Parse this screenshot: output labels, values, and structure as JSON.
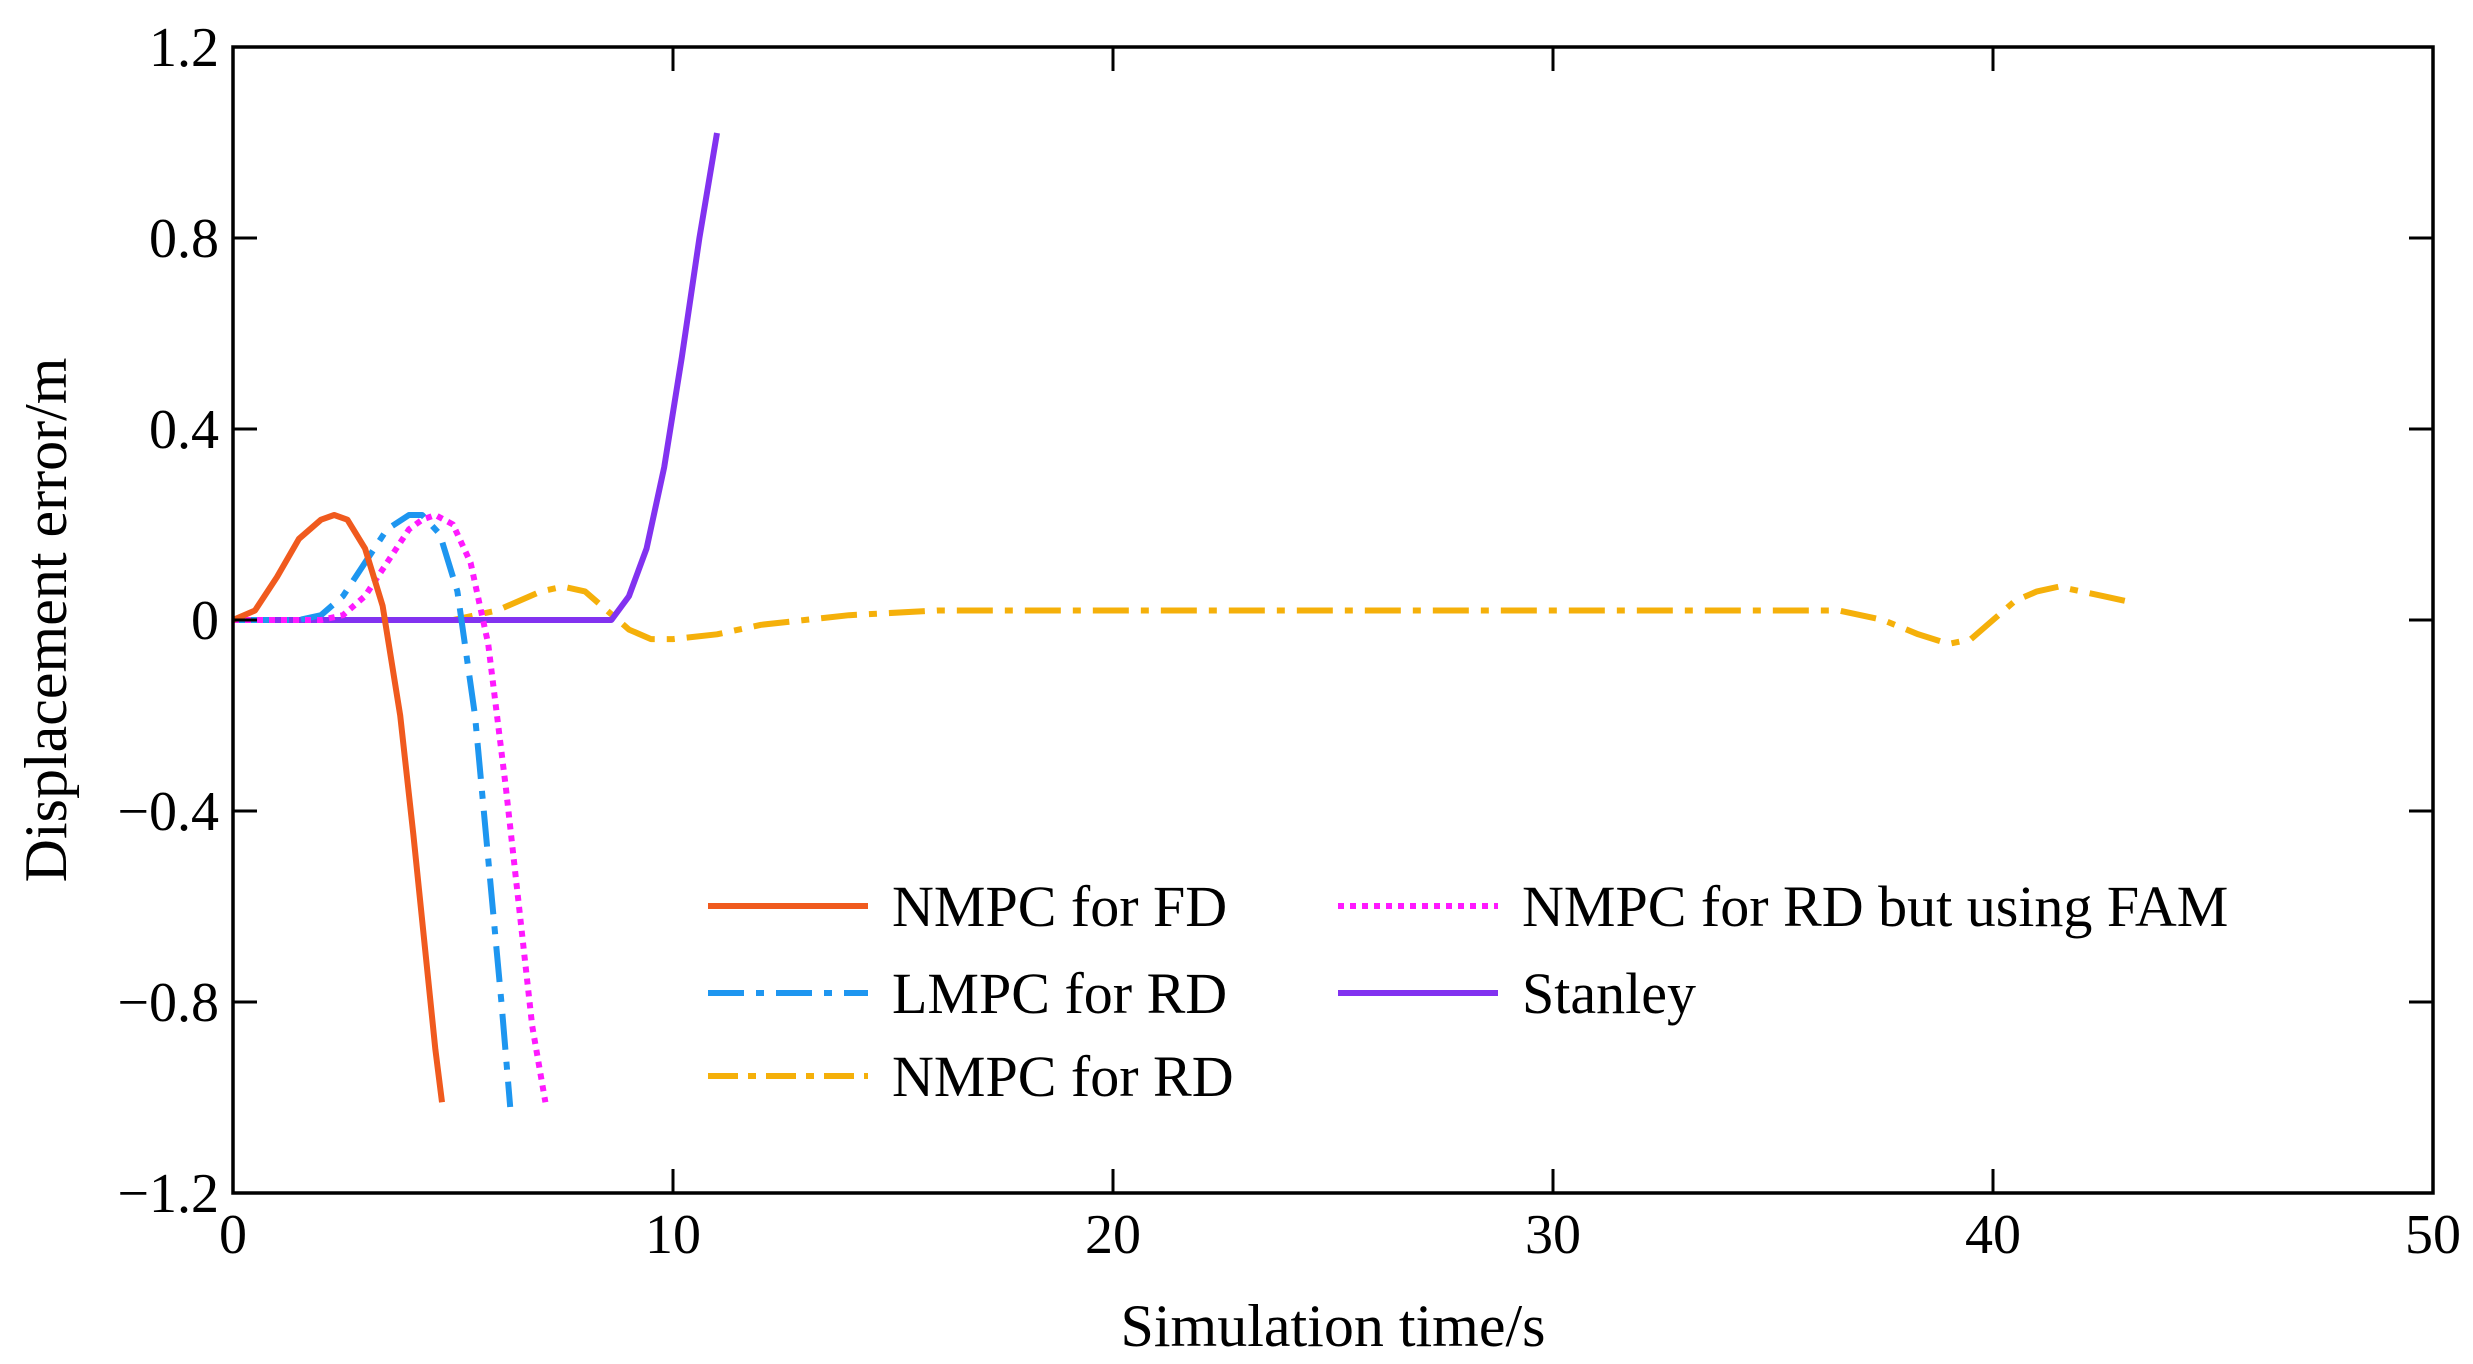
{
  "chart_data": {
    "type": "line",
    "title": "",
    "xlabel": "Simulation time/s",
    "ylabel": "Displacement error/m",
    "xlim": [
      0,
      50
    ],
    "ylim": [
      -1.2,
      1.2
    ],
    "xticks": [
      0,
      10,
      20,
      30,
      40,
      50
    ],
    "yticks": [
      -1.2,
      -0.8,
      -0.4,
      0,
      0.4,
      0.8,
      1.2
    ],
    "xtick_labels": [
      "0",
      "10",
      "20",
      "30",
      "40",
      "50"
    ],
    "ytick_labels": [
      "−1.2",
      "−0.8",
      "−0.4",
      "0",
      "0.4",
      "0.8",
      "1.2"
    ],
    "grid": false,
    "legend_position": "bottom-center, two columns",
    "series": [
      {
        "name": "NMPC for FD",
        "color": "#F05A1E",
        "dash": "solid",
        "x": [
          0,
          0.5,
          1,
          1.5,
          2,
          2.3,
          2.6,
          3,
          3.4,
          3.8,
          4.1,
          4.4,
          4.6,
          4.75
        ],
        "y": [
          0,
          0.02,
          0.09,
          0.17,
          0.21,
          0.22,
          0.21,
          0.15,
          0.03,
          -0.2,
          -0.45,
          -0.72,
          -0.9,
          -1.01
        ]
      },
      {
        "name": "LMPC for RD",
        "color": "#1E96F0",
        "dash": "dash-dot",
        "x": [
          0,
          1,
          1.5,
          2,
          2.5,
          3,
          3.5,
          4,
          4.3,
          4.7,
          5.1,
          5.5,
          5.8,
          6.1,
          6.3
        ],
        "y": [
          0,
          0,
          0,
          0.01,
          0.05,
          0.12,
          0.19,
          0.22,
          0.22,
          0.18,
          0.06,
          -0.2,
          -0.5,
          -0.8,
          -1.02
        ]
      },
      {
        "name": "NMPC for RD",
        "color": "#F5B00A",
        "dash": "dash-dot",
        "x": [
          0,
          3,
          5,
          6,
          7,
          7.5,
          8,
          8.5,
          9,
          9.5,
          10,
          11,
          12,
          14,
          16,
          20,
          25,
          30,
          35,
          36.5,
          37.5,
          38.3,
          39,
          39.5,
          40,
          40.5,
          41,
          41.5,
          42,
          42.5,
          43
        ],
        "y": [
          0,
          0,
          0,
          0.02,
          0.06,
          0.07,
          0.06,
          0.02,
          -0.02,
          -0.04,
          -0.04,
          -0.03,
          -0.01,
          0.01,
          0.02,
          0.02,
          0.02,
          0.02,
          0.02,
          0.02,
          0.0,
          -0.03,
          -0.05,
          -0.04,
          0.0,
          0.04,
          0.06,
          0.07,
          0.06,
          0.05,
          0.04
        ]
      },
      {
        "name": "NMPC for RD but using FAM",
        "color": "#FF19FF",
        "dash": "dotted",
        "x": [
          0,
          2,
          2.5,
          3,
          3.5,
          4,
          4.3,
          4.6,
          5,
          5.4,
          5.8,
          6.2,
          6.5,
          6.8,
          7.1
        ],
        "y": [
          0,
          0,
          0.01,
          0.05,
          0.12,
          0.19,
          0.21,
          0.22,
          0.2,
          0.12,
          -0.05,
          -0.35,
          -0.6,
          -0.85,
          -1.01
        ]
      },
      {
        "name": "Stanley",
        "color": "#8232F0",
        "dash": "solid",
        "x": [
          0,
          8.6,
          9,
          9.4,
          9.8,
          10.2,
          10.6,
          11.0
        ],
        "y": [
          0,
          0,
          0.05,
          0.15,
          0.32,
          0.55,
          0.8,
          1.02
        ]
      }
    ]
  }
}
